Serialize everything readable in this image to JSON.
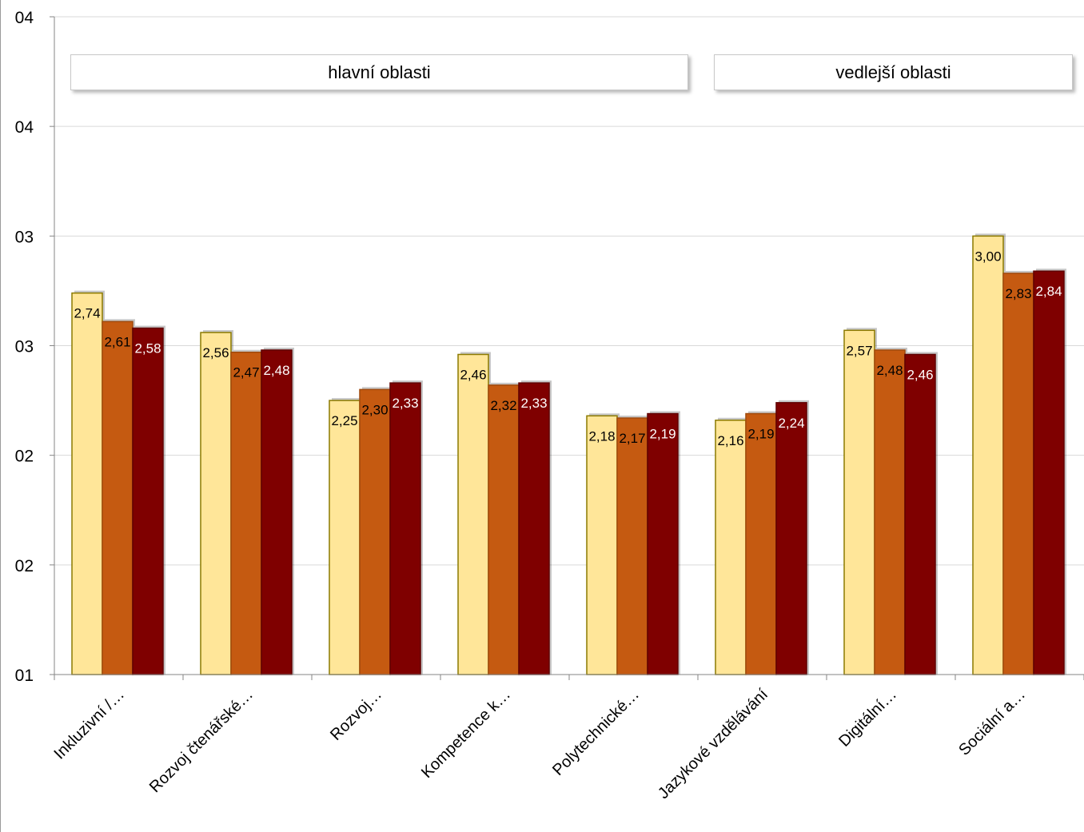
{
  "chart_data": {
    "type": "bar",
    "categories": [
      "Inkluzivní /…",
      "Rozvoj čtenářské…",
      "Rozvoj…",
      "Kompetence k…",
      "Polytechnické…",
      "Jazykové vzdělávání",
      "Digitální…",
      "Sociální a…"
    ],
    "series": [
      {
        "color": "#ffe699",
        "border": "#8c7a00",
        "label_color": "#000000",
        "values": [
          2.74,
          2.56,
          2.25,
          2.46,
          2.18,
          2.16,
          2.57,
          3.0
        ],
        "labels": [
          "2,74",
          "2,56",
          "2,25",
          "2,46",
          "2,18",
          "2,16",
          "2,57",
          "3,00"
        ]
      },
      {
        "color": "#c55a11",
        "border": "#a04a0d",
        "label_color": "#000000",
        "values": [
          2.61,
          2.47,
          2.3,
          2.32,
          2.17,
          2.19,
          2.48,
          2.83
        ],
        "labels": [
          "2,61",
          "2,47",
          "2,30",
          "2,32",
          "2,17",
          "2,19",
          "2,48",
          "2,83"
        ]
      },
      {
        "color": "#7f0000",
        "border": "#600000",
        "label_color": "#ffffff",
        "values": [
          2.58,
          2.48,
          2.33,
          2.33,
          2.19,
          2.24,
          2.46,
          2.84
        ],
        "labels": [
          "2,58",
          "2,48",
          "2,33",
          "2,33",
          "2,19",
          "2,24",
          "2,46",
          "2,84"
        ]
      }
    ],
    "ylim": [
      1.0,
      4.0
    ],
    "yticks": [
      1.0,
      1.5,
      2.0,
      2.5,
      3.0,
      3.5,
      4.0
    ],
    "ytick_labels": [
      "01",
      "02",
      "02",
      "03",
      "03",
      "04",
      "04"
    ],
    "grid": true,
    "legend": "none",
    "groups": [
      {
        "label": "hlavní oblasti",
        "first": 0,
        "last": 4
      },
      {
        "label": "vedlejší oblasti",
        "first": 5,
        "last": 7
      }
    ]
  }
}
